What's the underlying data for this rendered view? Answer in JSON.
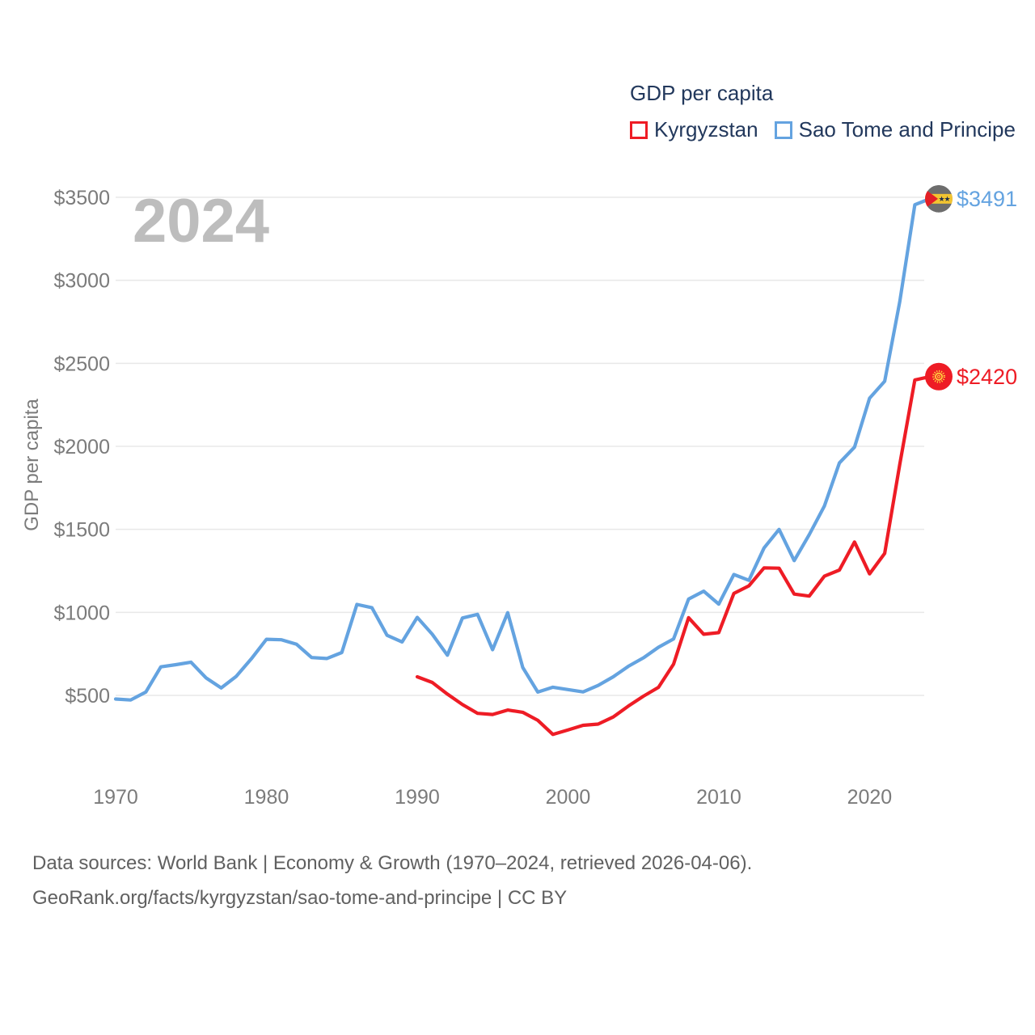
{
  "legend": {
    "title": "GDP per capita",
    "series": [
      {
        "label": "Kyrgyzstan",
        "color": "#ee1c25"
      },
      {
        "label": "Sao Tome and Principe",
        "color": "#64a3e0"
      }
    ]
  },
  "watermark": "2024",
  "end_labels": [
    {
      "series": "Sao Tome and Principe",
      "text": "$3491",
      "value": 3491,
      "color": "#64a3e0",
      "flag": "sao-tome-flag"
    },
    {
      "series": "Kyrgyzstan",
      "text": "$2420",
      "value": 2420,
      "color": "#ee1c25",
      "flag": "kyrgyzstan-flag"
    }
  ],
  "footer": {
    "line1": "Data sources: World Bank | Economy & Growth (1970–2024, retrieved 2026-04-06).",
    "line2": "GeoRank.org/facts/kyrgyzstan/sao-tome-and-principe | CC BY"
  },
  "chart_data": {
    "type": "line",
    "title": "GDP per capita",
    "ylabel": "GDP per capita",
    "xlim": [
      1970,
      2024
    ],
    "ylim": [
      150,
      3600
    ],
    "grid": "horizontal",
    "legend_position": "top-right",
    "y_ticks": [
      500,
      1000,
      1500,
      2000,
      2500,
      3000,
      3500
    ],
    "y_tick_labels": [
      "$500",
      "$1000",
      "$1500",
      "$2000",
      "$2500",
      "$3000",
      "$3500"
    ],
    "x_ticks": [
      1970,
      1980,
      1990,
      2000,
      2010,
      2020
    ],
    "series": [
      {
        "name": "Sao Tome and Principe",
        "color": "#64a3e0",
        "end_value": 3491,
        "points": [
          [
            1970,
            478
          ],
          [
            1971,
            472
          ],
          [
            1972,
            520
          ],
          [
            1973,
            672
          ],
          [
            1974,
            685
          ],
          [
            1975,
            700
          ],
          [
            1976,
            605
          ],
          [
            1977,
            545
          ],
          [
            1978,
            615
          ],
          [
            1979,
            720
          ],
          [
            1980,
            838
          ],
          [
            1981,
            835
          ],
          [
            1982,
            808
          ],
          [
            1983,
            728
          ],
          [
            1984,
            722
          ],
          [
            1985,
            758
          ],
          [
            1986,
            1048
          ],
          [
            1987,
            1028
          ],
          [
            1988,
            862
          ],
          [
            1989,
            822
          ],
          [
            1990,
            970
          ],
          [
            1991,
            868
          ],
          [
            1992,
            742
          ],
          [
            1993,
            966
          ],
          [
            1994,
            988
          ],
          [
            1995,
            775
          ],
          [
            1996,
            998
          ],
          [
            1997,
            668
          ],
          [
            1998,
            520
          ],
          [
            1999,
            549
          ],
          [
            2000,
            535
          ],
          [
            2001,
            521
          ],
          [
            2002,
            560
          ],
          [
            2003,
            612
          ],
          [
            2004,
            675
          ],
          [
            2005,
            726
          ],
          [
            2006,
            790
          ],
          [
            2007,
            840
          ],
          [
            2008,
            1080
          ],
          [
            2009,
            1128
          ],
          [
            2010,
            1050
          ],
          [
            2011,
            1228
          ],
          [
            2012,
            1193
          ],
          [
            2013,
            1388
          ],
          [
            2014,
            1500
          ],
          [
            2015,
            1312
          ],
          [
            2016,
            1468
          ],
          [
            2017,
            1640
          ],
          [
            2018,
            1900
          ],
          [
            2019,
            1995
          ],
          [
            2020,
            2290
          ],
          [
            2021,
            2392
          ],
          [
            2022,
            2870
          ],
          [
            2023,
            3455
          ],
          [
            2024,
            3491
          ]
        ]
      },
      {
        "name": "Kyrgyzstan",
        "color": "#ee1c25",
        "end_value": 2420,
        "points": [
          [
            1990,
            612
          ],
          [
            1991,
            578
          ],
          [
            1992,
            508
          ],
          [
            1993,
            445
          ],
          [
            1994,
            392
          ],
          [
            1995,
            385
          ],
          [
            1996,
            412
          ],
          [
            1997,
            398
          ],
          [
            1998,
            350
          ],
          [
            1999,
            265
          ],
          [
            2000,
            292
          ],
          [
            2001,
            320
          ],
          [
            2002,
            327
          ],
          [
            2003,
            370
          ],
          [
            2004,
            435
          ],
          [
            2005,
            495
          ],
          [
            2006,
            548
          ],
          [
            2007,
            688
          ],
          [
            2008,
            968
          ],
          [
            2009,
            868
          ],
          [
            2010,
            878
          ],
          [
            2011,
            1114
          ],
          [
            2012,
            1160
          ],
          [
            2013,
            1268
          ],
          [
            2014,
            1266
          ],
          [
            2015,
            1110
          ],
          [
            2016,
            1098
          ],
          [
            2017,
            1218
          ],
          [
            2018,
            1255
          ],
          [
            2019,
            1424
          ],
          [
            2020,
            1232
          ],
          [
            2021,
            1355
          ],
          [
            2022,
            1890
          ],
          [
            2023,
            2400
          ],
          [
            2024,
            2420
          ]
        ]
      }
    ]
  }
}
